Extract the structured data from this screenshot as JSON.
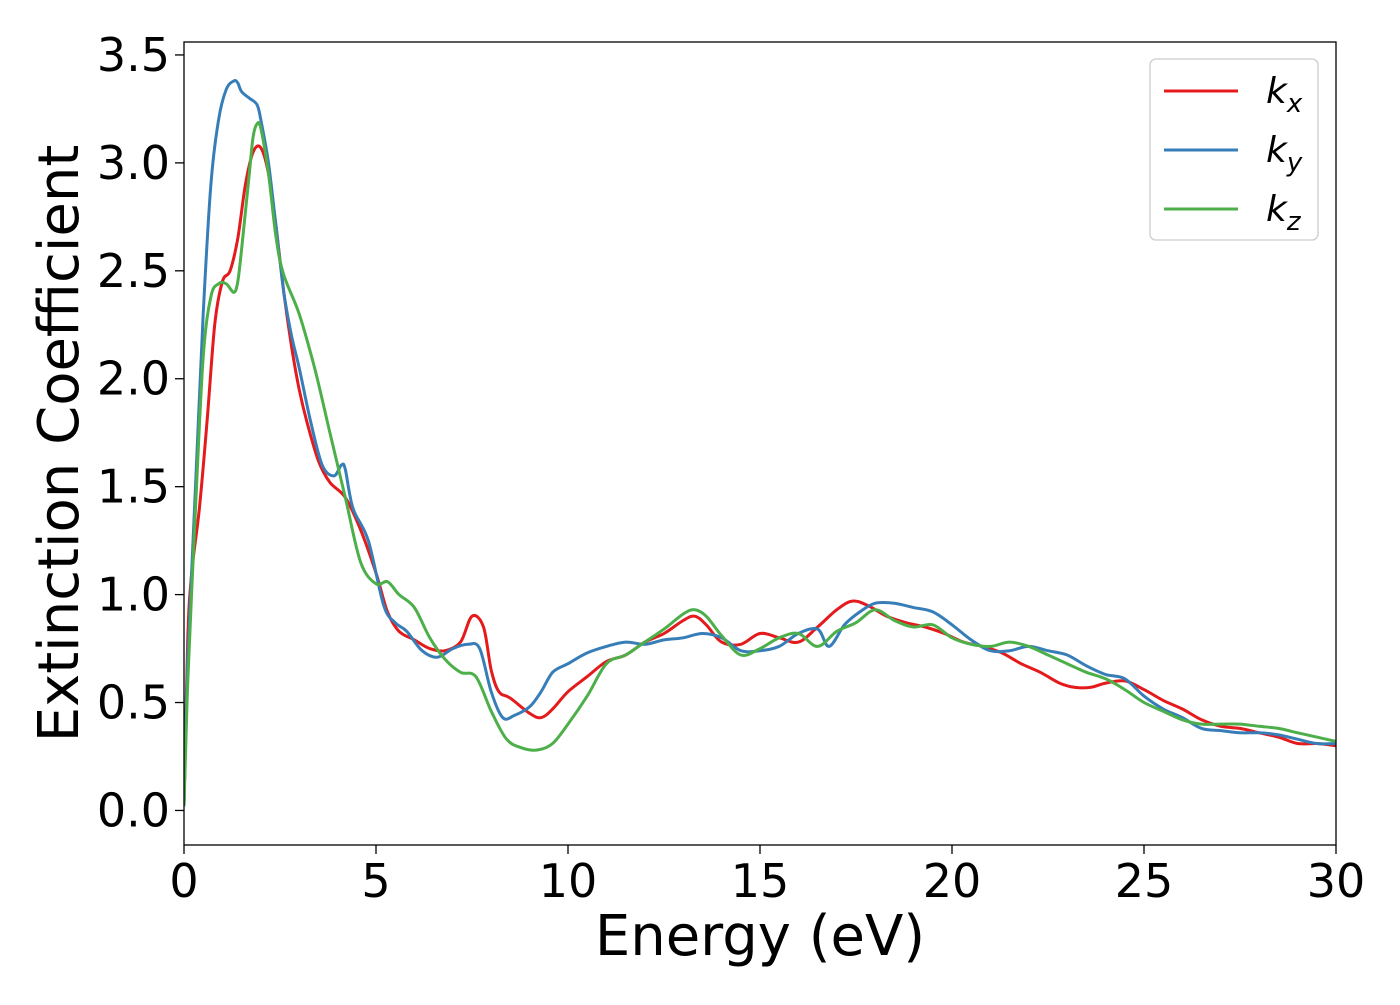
{
  "chart_data": {
    "type": "line",
    "title": "",
    "xlabel": "Energy (eV)",
    "ylabel": "Extinction Coefficient",
    "xlim": [
      0,
      30
    ],
    "ylim": [
      -0.16,
      3.56
    ],
    "xticks": [
      0,
      5,
      10,
      15,
      20,
      25,
      30
    ],
    "yticks": [
      0.0,
      0.5,
      1.0,
      1.5,
      2.0,
      2.5,
      3.0,
      3.5
    ],
    "xtick_labels": [
      "0",
      "5",
      "10",
      "15",
      "20",
      "25",
      "30"
    ],
    "ytick_labels": [
      "0.0",
      "0.5",
      "1.0",
      "1.5",
      "2.0",
      "2.5",
      "3.0",
      "3.5"
    ],
    "grid": false,
    "legend_position": "top-right",
    "series": [
      {
        "name": "k_x",
        "label_main": "k",
        "label_sub": "x",
        "color": "#e41a1c",
        "x": [
          0.0,
          0.1,
          0.2,
          0.4,
          0.6,
          0.8,
          1.0,
          1.2,
          1.4,
          1.6,
          1.8,
          2.0,
          2.2,
          2.4,
          2.6,
          2.8,
          3.0,
          3.2,
          3.5,
          3.8,
          4.2,
          4.6,
          5.0,
          5.3,
          5.6,
          6.0,
          6.4,
          6.8,
          7.2,
          7.5,
          7.8,
          8.0,
          8.2,
          8.5,
          9.0,
          9.3,
          9.6,
          10.0,
          10.5,
          11.0,
          11.5,
          12.0,
          12.5,
          13.0,
          13.3,
          13.6,
          14.0,
          14.5,
          15.0,
          15.5,
          16.0,
          16.5,
          17.0,
          17.4,
          17.8,
          18.3,
          18.8,
          19.3,
          19.8,
          20.3,
          20.8,
          21.3,
          21.8,
          22.3,
          22.8,
          23.2,
          23.6,
          24.0,
          24.5,
          25.0,
          25.5,
          26.0,
          26.5,
          27.0,
          27.5,
          28.0,
          28.5,
          29.0,
          29.5,
          30.0
        ],
        "y": [
          0.02,
          0.8,
          1.1,
          1.4,
          1.8,
          2.25,
          2.45,
          2.5,
          2.65,
          2.9,
          3.05,
          3.07,
          2.95,
          2.7,
          2.4,
          2.15,
          1.95,
          1.8,
          1.62,
          1.52,
          1.45,
          1.3,
          1.1,
          0.92,
          0.83,
          0.79,
          0.75,
          0.74,
          0.78,
          0.9,
          0.85,
          0.65,
          0.55,
          0.52,
          0.45,
          0.43,
          0.47,
          0.55,
          0.62,
          0.69,
          0.72,
          0.78,
          0.82,
          0.88,
          0.9,
          0.86,
          0.78,
          0.77,
          0.82,
          0.8,
          0.78,
          0.85,
          0.93,
          0.97,
          0.95,
          0.9,
          0.87,
          0.85,
          0.82,
          0.78,
          0.76,
          0.73,
          0.68,
          0.64,
          0.59,
          0.57,
          0.57,
          0.59,
          0.6,
          0.56,
          0.51,
          0.47,
          0.42,
          0.39,
          0.38,
          0.36,
          0.34,
          0.31,
          0.31,
          0.3
        ]
      },
      {
        "name": "k_y",
        "label_main": "k",
        "label_sub": "y",
        "color": "#377eb8",
        "x": [
          0.0,
          0.1,
          0.3,
          0.5,
          0.7,
          0.9,
          1.1,
          1.3,
          1.4,
          1.5,
          1.7,
          1.9,
          2.0,
          2.2,
          2.4,
          2.6,
          2.8,
          3.0,
          3.3,
          3.6,
          3.9,
          4.1,
          4.2,
          4.4,
          4.8,
          5.2,
          5.5,
          5.8,
          6.2,
          6.6,
          7.0,
          7.4,
          7.7,
          8.0,
          8.3,
          8.6,
          9.0,
          9.3,
          9.6,
          10.0,
          10.5,
          11.0,
          11.5,
          12.0,
          12.5,
          13.0,
          13.5,
          14.0,
          14.5,
          15.0,
          15.5,
          16.0,
          16.5,
          16.8,
          17.2,
          17.6,
          18.0,
          18.5,
          19.0,
          19.5,
          20.0,
          20.5,
          21.0,
          21.5,
          22.0,
          22.5,
          23.0,
          23.5,
          24.0,
          24.5,
          25.0,
          25.5,
          26.0,
          26.5,
          27.0,
          27.5,
          28.0,
          28.5,
          29.0,
          29.5,
          30.0
        ],
        "y": [
          0.02,
          0.7,
          1.5,
          2.3,
          2.9,
          3.2,
          3.34,
          3.38,
          3.37,
          3.33,
          3.3,
          3.27,
          3.2,
          3.0,
          2.7,
          2.4,
          2.2,
          2.05,
          1.8,
          1.6,
          1.55,
          1.6,
          1.58,
          1.4,
          1.25,
          0.95,
          0.87,
          0.83,
          0.74,
          0.71,
          0.75,
          0.77,
          0.75,
          0.55,
          0.43,
          0.44,
          0.48,
          0.55,
          0.64,
          0.68,
          0.73,
          0.76,
          0.78,
          0.77,
          0.79,
          0.8,
          0.82,
          0.8,
          0.74,
          0.74,
          0.76,
          0.82,
          0.84,
          0.76,
          0.86,
          0.92,
          0.96,
          0.96,
          0.94,
          0.92,
          0.86,
          0.79,
          0.74,
          0.74,
          0.76,
          0.74,
          0.72,
          0.67,
          0.63,
          0.61,
          0.53,
          0.47,
          0.43,
          0.38,
          0.37,
          0.36,
          0.36,
          0.35,
          0.33,
          0.31,
          0.31
        ]
      },
      {
        "name": "k_z",
        "label_main": "k",
        "label_sub": "z",
        "color": "#4daf4a",
        "x": [
          0.0,
          0.1,
          0.3,
          0.5,
          0.7,
          0.9,
          1.1,
          1.3,
          1.4,
          1.5,
          1.7,
          1.8,
          1.9,
          2.0,
          2.2,
          2.4,
          2.6,
          3.0,
          3.4,
          3.8,
          4.2,
          4.6,
          5.0,
          5.3,
          5.6,
          6.0,
          6.4,
          6.8,
          7.2,
          7.6,
          8.0,
          8.4,
          8.8,
          9.2,
          9.6,
          10.0,
          10.5,
          11.0,
          11.5,
          12.0,
          12.5,
          13.0,
          13.3,
          13.6,
          14.0,
          14.5,
          15.0,
          15.5,
          16.0,
          16.5,
          17.0,
          17.5,
          18.0,
          18.5,
          19.0,
          19.5,
          20.0,
          20.5,
          21.0,
          21.5,
          22.0,
          22.5,
          23.0,
          23.5,
          24.0,
          24.5,
          25.0,
          25.5,
          26.0,
          26.5,
          27.0,
          27.5,
          28.0,
          28.5,
          29.0,
          29.5,
          30.0
        ],
        "y": [
          0.02,
          0.6,
          1.4,
          2.1,
          2.38,
          2.44,
          2.44,
          2.4,
          2.45,
          2.6,
          2.95,
          3.12,
          3.18,
          3.16,
          2.95,
          2.65,
          2.48,
          2.3,
          2.05,
          1.75,
          1.45,
          1.15,
          1.05,
          1.06,
          1.0,
          0.94,
          0.8,
          0.7,
          0.64,
          0.62,
          0.46,
          0.33,
          0.29,
          0.28,
          0.31,
          0.4,
          0.53,
          0.68,
          0.72,
          0.78,
          0.84,
          0.91,
          0.93,
          0.9,
          0.81,
          0.72,
          0.75,
          0.8,
          0.82,
          0.76,
          0.83,
          0.87,
          0.93,
          0.88,
          0.85,
          0.86,
          0.8,
          0.77,
          0.76,
          0.78,
          0.76,
          0.72,
          0.68,
          0.64,
          0.61,
          0.56,
          0.5,
          0.46,
          0.42,
          0.4,
          0.4,
          0.4,
          0.39,
          0.38,
          0.36,
          0.34,
          0.32
        ]
      }
    ]
  }
}
